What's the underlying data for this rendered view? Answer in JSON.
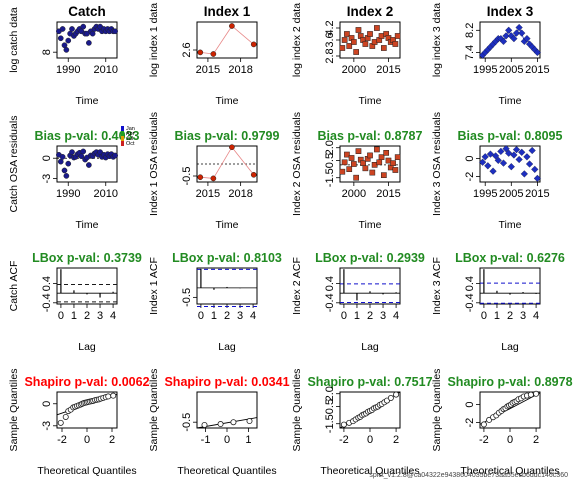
{
  "colors": {
    "catch_points": "#1a1a8c",
    "index1_points": "#cc2200",
    "index1_line": "#e88888",
    "index2_points": "#cc4422",
    "index3_points": "#1e2fbf",
    "pass": "#228b22",
    "fail": "#ff0000",
    "acf_limit": "#1010cc"
  },
  "footer_text": "spict_v1.2.8@ca04322e9438604035be73aa55ecb6ddc146c360",
  "legend": {
    "items": [
      "Jan",
      "Apr",
      "Jul",
      "Oct"
    ],
    "colors": [
      "#1010cc",
      "#20a020",
      "#e0a000",
      "#cc2020"
    ]
  },
  "chart_data": [
    {
      "type": "scatter",
      "row": 0,
      "col": 0,
      "title": "Catch",
      "xlabel": "Time",
      "ylabel": "log catch data",
      "xlim": [
        1984,
        2016
      ],
      "ylim": [
        7.75,
        9.3
      ],
      "xticks": [
        1990,
        2010
      ],
      "yticks": [
        8.0
      ],
      "marker": "circle",
      "color": "#1a1a8c",
      "connect": false,
      "x": [
        1985,
        1986,
        1987,
        1988,
        1989,
        1990,
        1991,
        1992,
        1993,
        1994,
        1995,
        1996,
        1997,
        1998,
        1999,
        2000,
        2001,
        2002,
        2003,
        2004,
        2005,
        2006,
        2007,
        2008,
        2009,
        2010,
        2011,
        2012,
        2013,
        2014,
        2015
      ],
      "y": [
        8.9,
        8.6,
        9.0,
        8.3,
        8.1,
        8.5,
        8.8,
        9.0,
        8.7,
        8.8,
        8.9,
        9.0,
        8.9,
        9.1,
        8.8,
        8.8,
        8.4,
        8.9,
        8.8,
        9.0,
        9.1,
        9.0,
        9.1,
        8.9,
        9.0,
        8.9,
        9.0,
        8.9,
        9.0,
        8.9,
        8.9
      ]
    },
    {
      "type": "line",
      "row": 0,
      "col": 1,
      "title": "Index 1",
      "xlabel": "Time",
      "ylabel": "log index 1 data",
      "xlim": [
        2014,
        2019.5
      ],
      "ylim": [
        2.5,
        2.95
      ],
      "xticks": [
        2015,
        2018
      ],
      "yticks": [
        2.6
      ],
      "marker": "circle",
      "color": "#cc2200",
      "connect": true,
      "x": [
        2014.3,
        2015.5,
        2017.2,
        2019.2
      ],
      "y": [
        2.57,
        2.55,
        2.9,
        2.67
      ]
    },
    {
      "type": "scatter",
      "row": 0,
      "col": 2,
      "title": "Index 2",
      "xlabel": "Time",
      "ylabel": "log index 2 data",
      "xlim": [
        1994,
        2020
      ],
      "ylim": [
        2.7,
        4.5
      ],
      "xticks": [
        2000,
        2015
      ],
      "yticks": [
        2.8,
        3.6,
        4.2
      ],
      "marker": "square",
      "color": "#cc4422",
      "connect": false,
      "x": [
        1995,
        1996,
        1997,
        1998,
        1999,
        2000,
        2001,
        2002,
        2003,
        2004,
        2005,
        2006,
        2007,
        2008,
        2009,
        2010,
        2011,
        2012,
        2013,
        2014,
        2015,
        2016,
        2017,
        2018,
        2019
      ],
      "y": [
        3.2,
        3.6,
        3.9,
        3.3,
        3.7,
        3.5,
        3.0,
        4.1,
        3.8,
        3.6,
        3.4,
        3.7,
        3.9,
        3.3,
        3.5,
        4.2,
        3.6,
        3.8,
        3.2,
        3.9,
        3.7,
        3.5,
        3.6,
        3.4,
        3.8
      ]
    },
    {
      "type": "line",
      "row": 0,
      "col": 3,
      "title": "Index 3",
      "xlabel": "Time",
      "ylabel": "log index 3 data",
      "xlim": [
        1993,
        2016
      ],
      "ylim": [
        7.2,
        8.5
      ],
      "xticks": [
        1995,
        2005,
        2015
      ],
      "yticks": [
        7.4,
        8.2
      ],
      "marker": "diamond",
      "color": "#1e2fbf",
      "connect": true,
      "x": [
        1994,
        1995,
        1996,
        1997,
        1998,
        1999,
        2000,
        2001,
        2002,
        2003,
        2004,
        2005,
        2006,
        2007,
        2008,
        2009,
        2010,
        2011,
        2012,
        2013,
        2014,
        2015
      ],
      "y": [
        7.3,
        7.4,
        7.5,
        7.6,
        7.7,
        7.8,
        7.9,
        7.9,
        7.8,
        8.0,
        8.2,
        8.0,
        7.9,
        8.1,
        8.3,
        8.1,
        7.8,
        7.9,
        7.7,
        7.6,
        7.5,
        7.4
      ]
    },
    {
      "type": "scatter",
      "row": 1,
      "col": 0,
      "title": "Bias p-val: 0.4033",
      "title_status": "pass",
      "xlabel": "Time",
      "ylabel": "Catch OSA residuals",
      "xlim": [
        1984,
        2016
      ],
      "ylim": [
        -3.5,
        1.8
      ],
      "xticks": [
        1990,
        2010
      ],
      "yticks": [
        -3,
        0
      ],
      "marker": "circle",
      "color": "#1a1a8c",
      "connect": false,
      "hline": 0,
      "show_legend": true,
      "x": [
        1985,
        1986,
        1987,
        1988,
        1989,
        1990,
        1991,
        1992,
        1993,
        1994,
        1995,
        1996,
        1997,
        1998,
        1999,
        2000,
        2001,
        2002,
        2003,
        2004,
        2005,
        2006,
        2007,
        2008,
        2009,
        2010,
        2011,
        2012,
        2013,
        2014,
        2015
      ],
      "y": [
        0.5,
        -0.5,
        0.2,
        -1.8,
        -2.6,
        -0.8,
        0.4,
        0.9,
        0.1,
        0.2,
        0.6,
        0.8,
        0.3,
        1.0,
        -0.2,
        0.1,
        -1.0,
        0.4,
        0.3,
        0.7,
        0.9,
        0.5,
        0.9,
        0.2,
        0.5,
        0.1,
        0.6,
        0.3,
        0.6,
        0.2,
        0.4
      ]
    },
    {
      "type": "line",
      "row": 1,
      "col": 1,
      "title": "Bias p-val: 0.9799",
      "title_status": "pass",
      "xlabel": "Time",
      "ylabel": "Index 1 OSA residuals",
      "xlim": [
        2014,
        2019.5
      ],
      "ylim": [
        -0.75,
        0.75
      ],
      "xticks": [
        2015,
        2018
      ],
      "yticks": [
        -0.5
      ],
      "marker": "circle",
      "color": "#cc2200",
      "connect": true,
      "hline": 0,
      "x": [
        2014.3,
        2015.5,
        2017.2,
        2019.2
      ],
      "y": [
        -0.55,
        -0.6,
        0.7,
        -0.45
      ]
    },
    {
      "type": "scatter",
      "row": 1,
      "col": 2,
      "title": "Bias p-val: 0.8787",
      "title_status": "pass",
      "xlabel": "Time",
      "ylabel": "Index 2 OSA residuals",
      "xlim": [
        1994,
        2020
      ],
      "ylim": [
        -2.0,
        2.2
      ],
      "xticks": [
        2000,
        2015
      ],
      "yticks": [
        -1.5,
        0.5,
        2.0
      ],
      "marker": "square",
      "color": "#cc4422",
      "connect": false,
      "hline": 0,
      "x": [
        1995,
        1996,
        1997,
        1998,
        1999,
        2000,
        2001,
        2002,
        2003,
        2004,
        2005,
        2006,
        2007,
        2008,
        2009,
        2010,
        2011,
        2012,
        2013,
        2014,
        2015,
        2016,
        2017,
        2018,
        2019
      ],
      "y": [
        -0.8,
        0.3,
        1.2,
        -0.5,
        0.8,
        0.1,
        -1.5,
        1.6,
        0.6,
        0.2,
        -0.4,
        0.7,
        1.1,
        -0.9,
        0.0,
        1.8,
        0.3,
        0.9,
        -1.2,
        1.4,
        0.5,
        -0.3,
        0.2,
        -0.6,
        0.9
      ]
    },
    {
      "type": "line",
      "row": 1,
      "col": 3,
      "title": "Bias p-val: 0.8095",
      "title_status": "pass",
      "xlabel": "Time",
      "ylabel": "Index 3 OSA residuals",
      "xlim": [
        1993,
        2016
      ],
      "ylim": [
        -2.6,
        1.4
      ],
      "xticks": [
        1995,
        2005,
        2015
      ],
      "yticks": [
        -2,
        0
      ],
      "marker": "diamond",
      "color": "#1e2fbf",
      "connect": false,
      "x": [
        1994,
        1995,
        1996,
        1997,
        1998,
        1999,
        2000,
        2001,
        2002,
        2003,
        2004,
        2005,
        2006,
        2007,
        2008,
        2009,
        2010,
        2011,
        2012,
        2013,
        2014,
        2015
      ],
      "y": [
        -0.4,
        0.2,
        -0.8,
        0.5,
        -1.4,
        0.3,
        -0.2,
        0.8,
        -0.5,
        1.1,
        0.6,
        -0.9,
        0.4,
        1.0,
        -0.1,
        0.7,
        -1.7,
        0.2,
        -0.6,
        0.9,
        -1.2,
        -2.2
      ]
    },
    {
      "type": "acf",
      "row": 2,
      "col": 0,
      "title": "LBox p-val: 0.3739",
      "title_status": "pass",
      "xlabel": "Lag",
      "ylabel": "Catch ACF",
      "xlim": [
        -0.3,
        4.3
      ],
      "ylim": [
        -0.45,
        1.05
      ],
      "xticks": [
        0,
        1,
        2,
        3,
        4
      ],
      "yticks": [
        -0.4,
        0.4
      ],
      "limit_lines": [
        0.36,
        -0.36
      ],
      "limit_color": "#1a1a1a",
      "lags": [
        0,
        1,
        2,
        3,
        4
      ],
      "values": [
        1.0,
        0.12,
        -0.05,
        -0.18,
        0.06
      ]
    },
    {
      "type": "acf",
      "row": 2,
      "col": 1,
      "title": "LBox p-val: 0.8103",
      "title_status": "pass",
      "xlabel": "Lag",
      "ylabel": "Index 1 ACF",
      "xlim": [
        -0.3,
        4.3
      ],
      "ylim": [
        -0.85,
        1.05
      ],
      "xticks": [
        0,
        1,
        2,
        3,
        4
      ],
      "yticks": [
        -0.5
      ],
      "limit_lines": [
        0.98,
        -0.98
      ],
      "limit_color": "#1010cc",
      "lags": [
        0,
        1,
        2,
        3,
        4
      ],
      "values": [
        1.0,
        -0.1,
        0.05,
        -0.02,
        0.01
      ]
    },
    {
      "type": "acf",
      "row": 2,
      "col": 2,
      "title": "LBox p-val: 0.2939",
      "title_status": "pass",
      "xlabel": "Lag",
      "ylabel": "Index 2 ACF",
      "xlim": [
        -0.3,
        4.3
      ],
      "ylim": [
        -0.45,
        1.05
      ],
      "xticks": [
        0,
        1,
        2,
        3,
        4
      ],
      "yticks": [
        -0.4,
        0.4
      ],
      "limit_lines": [
        0.39,
        -0.39
      ],
      "limit_color": "#1010cc",
      "lags": [
        0,
        1,
        2,
        3,
        4
      ],
      "values": [
        1.0,
        -0.3,
        0.08,
        -0.05,
        0.04
      ]
    },
    {
      "type": "acf",
      "row": 2,
      "col": 3,
      "title": "LBox p-val: 0.6276",
      "title_status": "pass",
      "xlabel": "Lag",
      "ylabel": "Index 3 ACF",
      "xlim": [
        -0.3,
        4.3
      ],
      "ylim": [
        -0.45,
        1.05
      ],
      "xticks": [
        0,
        1,
        2,
        3,
        4
      ],
      "yticks": [
        -0.4,
        0.4
      ],
      "limit_lines": [
        0.42,
        -0.42
      ],
      "limit_color": "#1010cc",
      "lags": [
        0,
        1,
        2,
        3,
        4
      ],
      "values": [
        1.0,
        0.1,
        -0.06,
        0.05,
        -0.03
      ]
    },
    {
      "type": "qq",
      "row": 3,
      "col": 0,
      "title": "Shapiro p-val: 0.0062",
      "title_status": "fail",
      "xlabel": "Theoretical Quantiles",
      "ylabel": "Sample Quantiles",
      "xlim": [
        -2.4,
        2.4
      ],
      "ylim": [
        -3.3,
        1.6
      ],
      "xticks": [
        -2,
        0,
        2
      ],
      "yticks": [
        -3,
        0
      ],
      "line": [
        [
          -2.4,
          -1.5
        ],
        [
          2.4,
          1.3
        ]
      ],
      "x": [
        -2.1,
        -1.7,
        -1.5,
        -1.3,
        -1.1,
        -0.95,
        -0.8,
        -0.65,
        -0.5,
        -0.38,
        -0.25,
        -0.12,
        0,
        0.12,
        0.25,
        0.38,
        0.5,
        0.65,
        0.8,
        0.95,
        1.1,
        1.3,
        1.5,
        1.7,
        2.1
      ],
      "y": [
        -2.6,
        -1.8,
        -1.0,
        -0.8,
        -0.5,
        -0.4,
        -0.3,
        -0.2,
        -0.1,
        0.0,
        0.1,
        0.15,
        0.2,
        0.25,
        0.3,
        0.35,
        0.4,
        0.5,
        0.55,
        0.6,
        0.7,
        0.8,
        0.9,
        1.0,
        1.1
      ]
    },
    {
      "type": "qq",
      "row": 3,
      "col": 1,
      "title": "Shapiro p-val: 0.0341",
      "title_status": "fail",
      "xlabel": "Theoretical Quantiles",
      "ylabel": "Sample Quantiles",
      "xlim": [
        -1.4,
        1.4
      ],
      "ylim": [
        -0.75,
        0.8
      ],
      "xticks": [
        -1.0,
        0.0,
        1.0
      ],
      "yticks": [
        -0.5
      ],
      "line": [
        [
          -1.4,
          -0.75
        ],
        [
          1.4,
          -0.3
        ]
      ],
      "x": [
        -1.05,
        -0.3,
        0.3,
        1.05
      ],
      "y": [
        -0.62,
        -0.58,
        -0.5,
        -0.45
      ]
    },
    {
      "type": "qq",
      "row": 3,
      "col": 2,
      "title": "Shapiro p-val: 0.7517",
      "title_status": "pass",
      "xlabel": "Theoretical Quantiles",
      "ylabel": "Sample Quantiles",
      "xlim": [
        -2.3,
        2.3
      ],
      "ylim": [
        -2.0,
        2.2
      ],
      "xticks": [
        -2,
        0,
        2
      ],
      "yticks": [
        -1.5,
        0.5,
        2.0
      ],
      "line": [
        [
          -2.3,
          -2.0
        ],
        [
          2.3,
          2.2
        ]
      ],
      "x": [
        -2.0,
        -1.6,
        -1.3,
        -1.1,
        -0.9,
        -0.75,
        -0.6,
        -0.45,
        -0.3,
        -0.15,
        0,
        0.15,
        0.3,
        0.45,
        0.6,
        0.75,
        0.9,
        1.1,
        1.3,
        1.6,
        2.0
      ],
      "y": [
        -1.6,
        -1.4,
        -1.2,
        -1.0,
        -0.8,
        -0.7,
        -0.5,
        -0.4,
        -0.3,
        -0.1,
        0.0,
        0.1,
        0.3,
        0.4,
        0.5,
        0.7,
        0.8,
        1.0,
        1.2,
        1.5,
        1.9
      ]
    },
    {
      "type": "qq",
      "row": 3,
      "col": 3,
      "title": "Shapiro p-val: 0.8978",
      "title_status": "pass",
      "xlabel": "Theoretical Quantiles",
      "ylabel": "Sample Quantiles",
      "xlim": [
        -2.3,
        2.3
      ],
      "ylim": [
        -2.6,
        1.4
      ],
      "xticks": [
        -2,
        0,
        2
      ],
      "yticks": [
        -2,
        0
      ],
      "line": [
        [
          -2.3,
          -2.2
        ],
        [
          2.3,
          1.3
        ]
      ],
      "x": [
        -2.0,
        -1.6,
        -1.3,
        -1.05,
        -0.85,
        -0.65,
        -0.5,
        -0.35,
        -0.2,
        -0.07,
        0.07,
        0.2,
        0.35,
        0.5,
        0.65,
        0.85,
        1.05,
        1.3,
        1.6,
        2.0
      ],
      "y": [
        -2.2,
        -1.7,
        -1.4,
        -1.2,
        -0.9,
        -0.7,
        -0.5,
        -0.4,
        -0.2,
        -0.1,
        0.0,
        0.2,
        0.3,
        0.4,
        0.6,
        0.7,
        0.9,
        1.0,
        1.1,
        1.2
      ]
    }
  ]
}
